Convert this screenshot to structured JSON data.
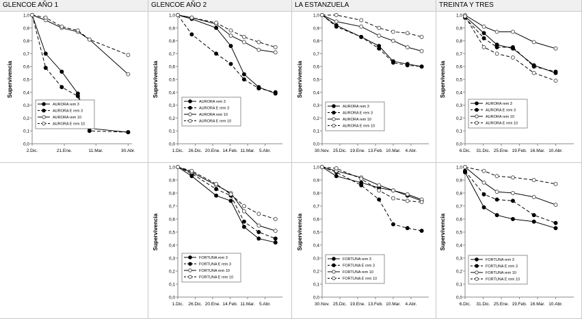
{
  "columns": [
    {
      "header": "GLENCOE AÑO 1"
    },
    {
      "header": "GLENCOE AÑO 2"
    },
    {
      "header": "LA ESTANZUELA"
    },
    {
      "header": "TREINTA Y TRES"
    }
  ],
  "chart_data": [
    {
      "id": "glencoe1-aurora",
      "type": "line",
      "ylabel": "Supervivencia",
      "ylim": [
        0,
        1
      ],
      "yticks": [
        "0,0",
        "0,1",
        "0,2",
        "0,3",
        "0,4",
        "0,5",
        "0,6",
        "0,7",
        "0,8",
        "0,9",
        "1,0"
      ],
      "xticks": [
        {
          "x": 0,
          "label": "2.Dic."
        },
        {
          "x": 50,
          "label": "21.Ene."
        },
        {
          "x": 99,
          "label": "11.Mar."
        },
        {
          "x": 149,
          "label": "30.Abr."
        }
      ],
      "xlim": [
        0,
        155
      ],
      "series": [
        {
          "name": "AURORA rem 3",
          "style": "solid-filled",
          "x": [
            0,
            21,
            46,
            71,
            89,
            149
          ],
          "y": [
            1.0,
            0.7,
            0.56,
            0.39,
            0.12,
            0.09
          ]
        },
        {
          "name": "AURORA E rem 3",
          "style": "dashed-filled",
          "x": [
            0,
            21,
            46,
            71,
            89,
            149
          ],
          "y": [
            1.0,
            0.59,
            0.44,
            0.37,
            0.1,
            0.09
          ]
        },
        {
          "name": "AURORA rem 10",
          "style": "solid-open",
          "x": [
            0,
            21,
            46,
            71,
            89,
            149
          ],
          "y": [
            1.0,
            0.96,
            0.9,
            0.87,
            0.81,
            0.54
          ]
        },
        {
          "name": "AURORA E rem 10",
          "style": "dashed-open",
          "x": [
            0,
            21,
            46,
            71,
            89,
            149
          ],
          "y": [
            1.0,
            0.98,
            0.91,
            0.88,
            0.81,
            0.69
          ]
        }
      ]
    },
    {
      "id": "glencoe2-aurora",
      "type": "line",
      "ylabel": "Supervivencia",
      "ylim": [
        0,
        1
      ],
      "yticks": [
        "0,0",
        "0,1",
        "0,2",
        "0,3",
        "0,4",
        "0,5",
        "0,6",
        "0,7",
        "0,8",
        "0,9",
        "1,0"
      ],
      "xticks": [
        {
          "x": 0,
          "label": "1.Dic."
        },
        {
          "x": 25,
          "label": "26.Dic."
        },
        {
          "x": 50,
          "label": "20.Ene."
        },
        {
          "x": 75,
          "label": "14.Feb."
        },
        {
          "x": 100,
          "label": "11.Mar."
        },
        {
          "x": 125,
          "label": "5.Abr."
        }
      ],
      "xlim": [
        0,
        150
      ],
      "series": [
        {
          "name": "AURORA rem 3",
          "style": "solid-filled",
          "x": [
            0,
            20,
            55,
            76,
            95,
            116,
            140
          ],
          "y": [
            1.0,
            0.97,
            0.9,
            0.76,
            0.54,
            0.44,
            0.39
          ]
        },
        {
          "name": "AURORA E rem 3",
          "style": "dashed-filled",
          "x": [
            0,
            20,
            55,
            76,
            95,
            116,
            140
          ],
          "y": [
            1.0,
            0.85,
            0.7,
            0.62,
            0.5,
            0.43,
            0.4
          ]
        },
        {
          "name": "AURORA rem 10",
          "style": "solid-open",
          "x": [
            0,
            20,
            55,
            76,
            95,
            116,
            140
          ],
          "y": [
            1.0,
            0.98,
            0.93,
            0.84,
            0.79,
            0.73,
            0.71
          ]
        },
        {
          "name": "AURORA E rem 10",
          "style": "dashed-open",
          "x": [
            0,
            20,
            55,
            76,
            95,
            116,
            140
          ],
          "y": [
            1.0,
            0.98,
            0.94,
            0.88,
            0.83,
            0.79,
            0.75
          ]
        }
      ]
    },
    {
      "id": "estanzuela-aurora",
      "type": "line",
      "ylabel": "Supervivencia",
      "ylim": [
        0,
        1
      ],
      "yticks": [
        "0,0",
        "0,1",
        "0,2",
        "0,3",
        "0,4",
        "0,5",
        "0,6",
        "0,7",
        "0,8",
        "0,9",
        "1,0"
      ],
      "xticks": [
        {
          "x": 0,
          "label": "30.Nov."
        },
        {
          "x": 25,
          "label": "25.Dic."
        },
        {
          "x": 50,
          "label": "19.Ene."
        },
        {
          "x": 75,
          "label": "13.Feb."
        },
        {
          "x": 100,
          "label": "10.Mar."
        },
        {
          "x": 125,
          "label": "4.Abr."
        }
      ],
      "xlim": [
        0,
        150
      ],
      "series": [
        {
          "name": "AURORA rem 3",
          "style": "solid-filled",
          "x": [
            0,
            20,
            55,
            80,
            100,
            120,
            140
          ],
          "y": [
            1.0,
            0.92,
            0.83,
            0.76,
            0.64,
            0.62,
            0.6
          ]
        },
        {
          "name": "AURORA E rem 3",
          "style": "dashed-filled",
          "x": [
            0,
            20,
            55,
            80,
            100,
            120,
            140
          ],
          "y": [
            1.0,
            0.91,
            0.83,
            0.74,
            0.63,
            0.61,
            0.6
          ]
        },
        {
          "name": "AURORA rem 10",
          "style": "solid-open",
          "x": [
            0,
            20,
            55,
            80,
            100,
            120,
            140
          ],
          "y": [
            1.0,
            0.95,
            0.91,
            0.84,
            0.8,
            0.75,
            0.72
          ]
        },
        {
          "name": "AURORA E rem 10",
          "style": "dashed-open",
          "x": [
            0,
            20,
            55,
            80,
            100,
            120,
            140
          ],
          "y": [
            1.0,
            1.0,
            0.96,
            0.9,
            0.87,
            0.86,
            0.83
          ]
        }
      ]
    },
    {
      "id": "treinta-aurora",
      "type": "line",
      "ylabel": "Supervivencia",
      "ylim": [
        0,
        1
      ],
      "yticks": [
        "0,0",
        "0,1",
        "0,2",
        "0,3",
        "0,4",
        "0,5",
        "0,6",
        "0,7",
        "0,8",
        "0,9",
        "1,0"
      ],
      "xticks": [
        {
          "x": 0,
          "label": "6.Dic."
        },
        {
          "x": 25,
          "label": "31.Dic."
        },
        {
          "x": 50,
          "label": "25.Ene."
        },
        {
          "x": 75,
          "label": "19.Feb."
        },
        {
          "x": 100,
          "label": "16.Mar."
        },
        {
          "x": 125,
          "label": "10.Abr."
        }
      ],
      "xlim": [
        0,
        150
      ],
      "series": [
        {
          "name": "AURORA rem 3",
          "style": "solid-filled",
          "x": [
            0,
            26,
            44,
            66,
            95,
            125
          ],
          "y": [
            0.99,
            0.86,
            0.77,
            0.74,
            0.61,
            0.55
          ]
        },
        {
          "name": "AURORA E rem 3",
          "style": "dashed-filled",
          "x": [
            0,
            26,
            44,
            66,
            95,
            125
          ],
          "y": [
            0.98,
            0.82,
            0.75,
            0.75,
            0.6,
            0.56
          ]
        },
        {
          "name": "AURORA rem 10",
          "style": "solid-open",
          "x": [
            0,
            26,
            44,
            66,
            95,
            125
          ],
          "y": [
            1.0,
            0.91,
            0.87,
            0.87,
            0.79,
            0.74
          ]
        },
        {
          "name": "AURORA E rem 10",
          "style": "dashed-open",
          "x": [
            0,
            26,
            44,
            66,
            95,
            125
          ],
          "y": [
            0.99,
            0.75,
            0.7,
            0.67,
            0.55,
            0.49
          ]
        }
      ]
    },
    {
      "id": "glencoe2-fortuna",
      "type": "line",
      "ylabel": "Supervivencia",
      "ylim": [
        0,
        1
      ],
      "yticks": [
        "0,0",
        "0,1",
        "0,2",
        "0,3",
        "0,4",
        "0,5",
        "0,6",
        "0,7",
        "0,8",
        "0,9",
        "1,0"
      ],
      "xticks": [
        {
          "x": 0,
          "label": "1.Dic."
        },
        {
          "x": 25,
          "label": "26.Dic."
        },
        {
          "x": 50,
          "label": "20.Ene."
        },
        {
          "x": 75,
          "label": "14.Feb."
        },
        {
          "x": 100,
          "label": "11.Mar."
        },
        {
          "x": 125,
          "label": "5.Abr."
        }
      ],
      "xlim": [
        0,
        150
      ],
      "series": [
        {
          "name": "FORTUNA rem 3",
          "style": "solid-filled",
          "x": [
            0,
            20,
            55,
            76,
            95,
            116,
            140
          ],
          "y": [
            1.0,
            0.93,
            0.78,
            0.74,
            0.54,
            0.45,
            0.42
          ]
        },
        {
          "name": "FORTUNA E rem 3",
          "style": "dashed-filled",
          "x": [
            0,
            20,
            55,
            76,
            95,
            116,
            140
          ],
          "y": [
            1.0,
            0.95,
            0.83,
            0.78,
            0.58,
            0.5,
            0.45
          ]
        },
        {
          "name": "FORTUNA rem 10",
          "style": "solid-open",
          "x": [
            0,
            20,
            55,
            76,
            95,
            116,
            140
          ],
          "y": [
            1.0,
            0.96,
            0.86,
            0.8,
            0.66,
            0.55,
            0.51
          ]
        },
        {
          "name": "FORTUNA E rem 10",
          "style": "dashed-open",
          "x": [
            0,
            20,
            55,
            76,
            95,
            116,
            140
          ],
          "y": [
            1.0,
            0.97,
            0.87,
            0.79,
            0.7,
            0.64,
            0.6
          ]
        }
      ]
    },
    {
      "id": "estanzuela-fortuna",
      "type": "line",
      "ylabel": "Supervivencia",
      "ylim": [
        0,
        1
      ],
      "yticks": [
        "0,0",
        "0,1",
        "0,2",
        "0,3",
        "0,4",
        "0,5",
        "0,6",
        "0,7",
        "0,8",
        "0,9",
        "1,0"
      ],
      "xticks": [
        {
          "x": 0,
          "label": "30.Nov."
        },
        {
          "x": 25,
          "label": "25.Dic."
        },
        {
          "x": 50,
          "label": "19.Ene."
        },
        {
          "x": 75,
          "label": "13.Feb."
        },
        {
          "x": 100,
          "label": "10.Mar."
        },
        {
          "x": 125,
          "label": "4.Abr."
        }
      ],
      "xlim": [
        0,
        150
      ],
      "series": [
        {
          "name": "FORTUNA rem 3",
          "style": "solid-filled",
          "x": [
            0,
            20,
            55,
            80,
            100,
            120,
            140
          ],
          "y": [
            1.0,
            0.93,
            0.88,
            0.84,
            0.82,
            0.78,
            0.74
          ]
        },
        {
          "name": "FORTUNA E rem 3",
          "style": "dashed-filled",
          "x": [
            0,
            20,
            55,
            80,
            100,
            120,
            140
          ],
          "y": [
            1.0,
            0.96,
            0.86,
            0.75,
            0.56,
            0.53,
            0.51
          ]
        },
        {
          "name": "FORTUNA rem 10",
          "style": "solid-open",
          "x": [
            0,
            20,
            55,
            80,
            100,
            120,
            140
          ],
          "y": [
            1.0,
            0.97,
            0.92,
            0.86,
            0.82,
            0.79,
            0.75
          ]
        },
        {
          "name": "FORTUNA E rem 10",
          "style": "dashed-open",
          "x": [
            0,
            20,
            55,
            80,
            100,
            120,
            140
          ],
          "y": [
            1.0,
            0.99,
            0.91,
            0.82,
            0.76,
            0.74,
            0.73
          ]
        }
      ]
    },
    {
      "id": "treinta-fortuna",
      "type": "line",
      "ylabel": "Supervivencia",
      "ylim": [
        0,
        1
      ],
      "yticks": [
        "0,0",
        "0,1",
        "0,2",
        "0,3",
        "0,4",
        "0,5",
        "0,6",
        "0,7",
        "0,8",
        "0,9",
        "1,0"
      ],
      "xticks": [
        {
          "x": 0,
          "label": "6.Dic."
        },
        {
          "x": 25,
          "label": "31.Dic."
        },
        {
          "x": 50,
          "label": "25.Ene."
        },
        {
          "x": 75,
          "label": "19.Feb."
        },
        {
          "x": 100,
          "label": "16.Mar."
        },
        {
          "x": 125,
          "label": "10.Abr."
        }
      ],
      "xlim": [
        0,
        150
      ],
      "series": [
        {
          "name": "FORTUNA rem 3",
          "style": "solid-filled",
          "x": [
            0,
            26,
            44,
            66,
            95,
            125
          ],
          "y": [
            0.96,
            0.69,
            0.63,
            0.6,
            0.58,
            0.53
          ]
        },
        {
          "name": "FORTUNA E rem 3",
          "style": "dashed-filled",
          "x": [
            0,
            26,
            44,
            66,
            95,
            125
          ],
          "y": [
            0.97,
            0.79,
            0.75,
            0.74,
            0.63,
            0.57
          ]
        },
        {
          "name": "FORTUNA rem 10",
          "style": "solid-open",
          "x": [
            0,
            26,
            44,
            66,
            95,
            125
          ],
          "y": [
            1.0,
            0.88,
            0.81,
            0.8,
            0.77,
            0.71
          ]
        },
        {
          "name": "FORTUNA E rem 10",
          "style": "dashed-open",
          "x": [
            0,
            26,
            44,
            66,
            95,
            125
          ],
          "y": [
            1.0,
            0.97,
            0.93,
            0.92,
            0.9,
            0.87
          ]
        }
      ]
    }
  ]
}
